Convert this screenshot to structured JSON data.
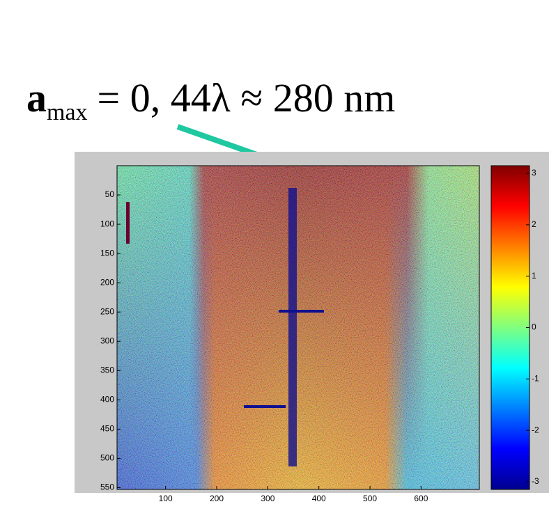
{
  "chart_data": {
    "type": "image",
    "colormap": "jet",
    "annotation": {
      "symbol": "a",
      "subscript": "max",
      "text": "= 0, 44λ ≈ 280 nm"
    },
    "xlim": [
      5,
      714
    ],
    "xticks": [
      100,
      200,
      300,
      400,
      500,
      600
    ],
    "ylim": [
      0,
      553
    ],
    "yticks": [
      50,
      100,
      150,
      200,
      250,
      300,
      350,
      400,
      450,
      500,
      550
    ],
    "y_reversed": true,
    "colorbar": {
      "lim": [
        -3.15,
        3.15
      ],
      "ticks": [
        -3,
        -2,
        -1,
        0,
        1,
        2,
        3
      ]
    }
  }
}
